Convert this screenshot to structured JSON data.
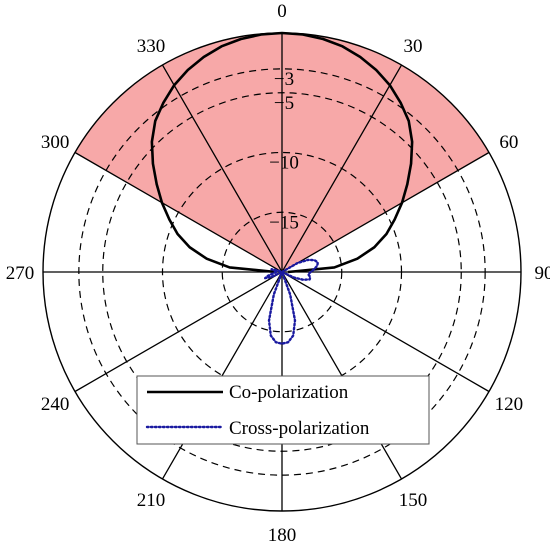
{
  "chart_data": {
    "type": "polar-line",
    "angle_ticks": [
      "0",
      "30",
      "60",
      "90",
      "120",
      "150",
      "180",
      "210",
      "240",
      "270",
      "300",
      "330"
    ],
    "angle_tick_values": [
      0,
      30,
      60,
      90,
      120,
      150,
      180,
      210,
      240,
      270,
      300,
      330
    ],
    "radial_rings": [
      {
        "value": -3,
        "label": "−3",
        "dashed": true
      },
      {
        "value": -5,
        "label": "−5",
        "dashed": true
      },
      {
        "value": -10,
        "label": "−10",
        "dashed": true
      },
      {
        "value": -15,
        "label": "−15",
        "dashed": true
      }
    ],
    "radial_range": [
      -20,
      0
    ],
    "shaded_sector": {
      "from_deg": -60,
      "to_deg": 60,
      "color": "#f7a8a8"
    },
    "colors": {
      "co": "#000000",
      "cross": "#1a1aa0",
      "grid": "#000000"
    },
    "series": [
      {
        "name": "Co-polarization",
        "style": "solid",
        "angles_deg": [
          -90,
          -85,
          -80,
          -75,
          -70,
          -65,
          -60,
          -55,
          -50,
          -45,
          -40,
          -35,
          -30,
          -25,
          -20,
          -15,
          -10,
          -5,
          0,
          5,
          10,
          15,
          20,
          25,
          30,
          35,
          40,
          45,
          50,
          55,
          60,
          65,
          70,
          75,
          80,
          85,
          90
        ],
        "values_db": [
          -19.5,
          -15.6,
          -13.6,
          -12.0,
          -10.7,
          -9.6,
          -8.4,
          -7.2,
          -5.9,
          -4.6,
          -3.5,
          -2.7,
          -1.95,
          -1.35,
          -0.85,
          -0.45,
          -0.2,
          -0.05,
          0,
          -0.05,
          -0.2,
          -0.45,
          -0.85,
          -1.35,
          -1.95,
          -2.7,
          -3.5,
          -4.6,
          -5.9,
          -7.2,
          -8.4,
          -9.6,
          -10.7,
          -12.0,
          -13.6,
          -15.6,
          -19.5
        ]
      },
      {
        "name": "Cross-polarization",
        "style": "dotted",
        "angles_deg": [
          55,
          60,
          65,
          70,
          75,
          80,
          85,
          90,
          95,
          100,
          105,
          110,
          115,
          120,
          125,
          135,
          145,
          155,
          160,
          165,
          170,
          175,
          180,
          185,
          190,
          195,
          200,
          205,
          215,
          225,
          235,
          240,
          245,
          250,
          255,
          260,
          265,
          270,
          275,
          280,
          285,
          290,
          300
        ],
        "values_db": [
          -20,
          -18.5,
          -17.6,
          -17.1,
          -16.9,
          -17.0,
          -17.3,
          -17.6,
          -17.8,
          -17.6,
          -17.6,
          -18.1,
          -18.9,
          -20,
          -20,
          -20,
          -20,
          -20,
          -18.0,
          -15.8,
          -14.6,
          -14.1,
          -14.0,
          -14.1,
          -14.6,
          -15.8,
          -18.0,
          -20,
          -20,
          -20,
          -20,
          -20,
          -19.0,
          -18.5,
          -18.8,
          -19.2,
          -19.4,
          -19.5,
          -19.6,
          -19.4,
          -19.1,
          -19.6,
          -20
        ]
      }
    ],
    "legend": {
      "placement": "bottom-center"
    },
    "grid": true
  }
}
